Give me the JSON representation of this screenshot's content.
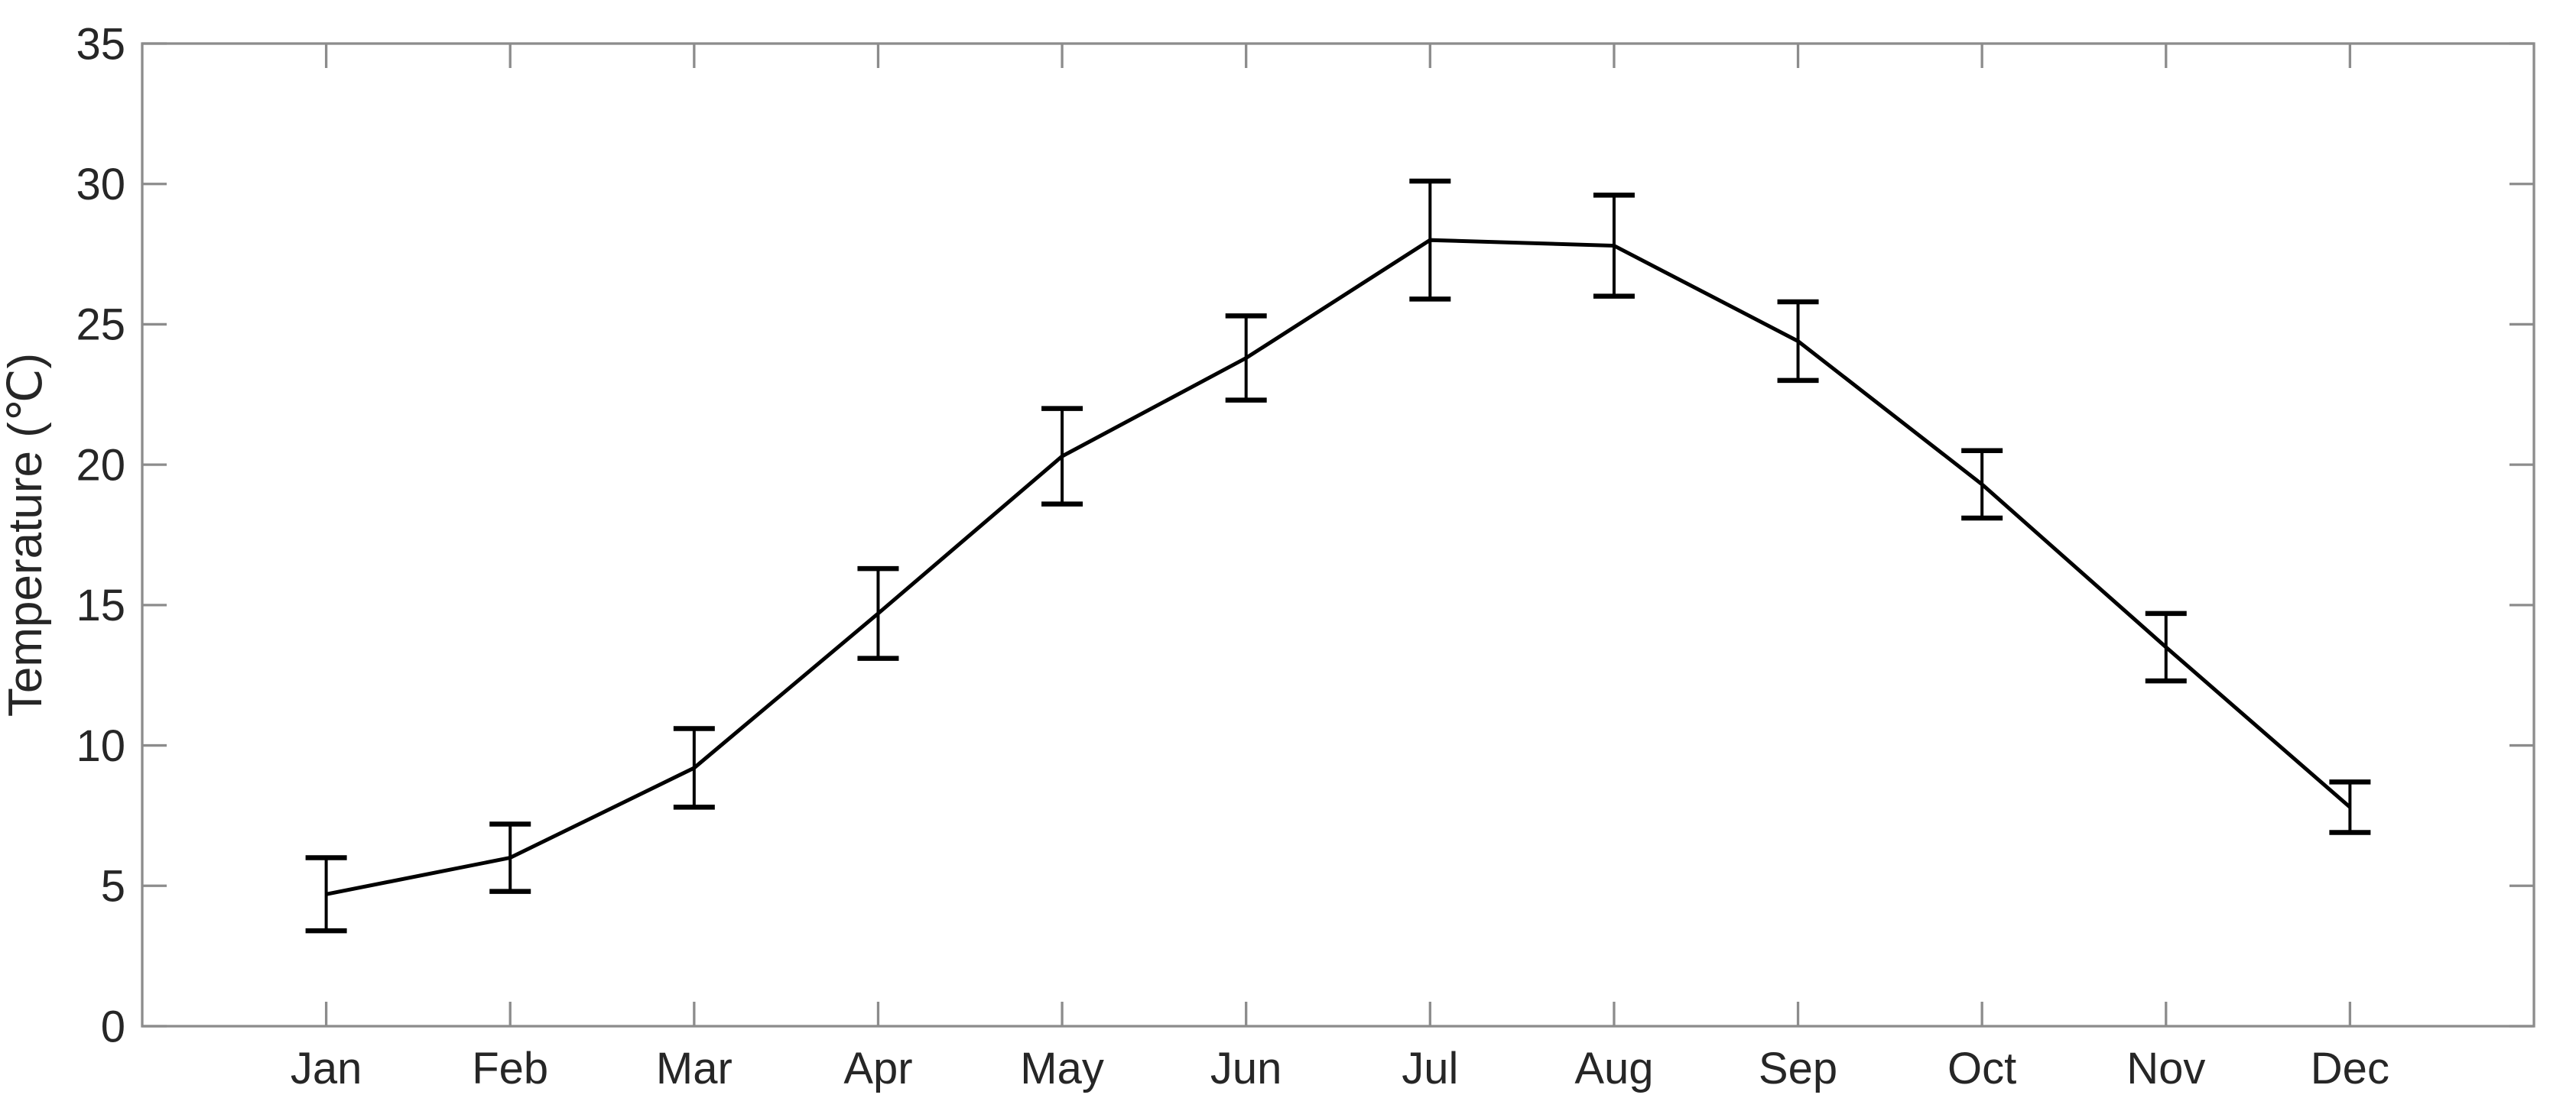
{
  "figure": {
    "background": "#ffffff"
  },
  "colors": {
    "axis": "#8c8c8c",
    "text": "#262626",
    "line": "#000000",
    "error_bar": "#000000"
  },
  "chart_data": {
    "type": "line",
    "title": "",
    "xlabel": "",
    "ylabel": "Temperature (℃)",
    "categories": [
      "Jan",
      "Feb",
      "Mar",
      "Apr",
      "May",
      "Jun",
      "Jul",
      "Aug",
      "Sep",
      "Oct",
      "Nov",
      "Dec"
    ],
    "values": [
      4.7,
      6.0,
      9.2,
      14.7,
      20.3,
      23.8,
      28.0,
      27.8,
      24.4,
      19.3,
      13.5,
      7.8
    ],
    "error_bars": [
      1.3,
      1.2,
      1.4,
      1.6,
      1.7,
      1.5,
      2.1,
      1.8,
      1.4,
      1.2,
      1.2,
      0.9
    ],
    "ylim": [
      0,
      35
    ],
    "yticks": [
      0,
      5,
      10,
      15,
      20,
      25,
      30,
      35
    ],
    "ytick_labels": [
      "0",
      "5",
      "10",
      "15",
      "20",
      "25",
      "30",
      "35"
    ],
    "grid": false,
    "legend": null,
    "box": true,
    "tick_direction": "in",
    "marker": "none"
  }
}
